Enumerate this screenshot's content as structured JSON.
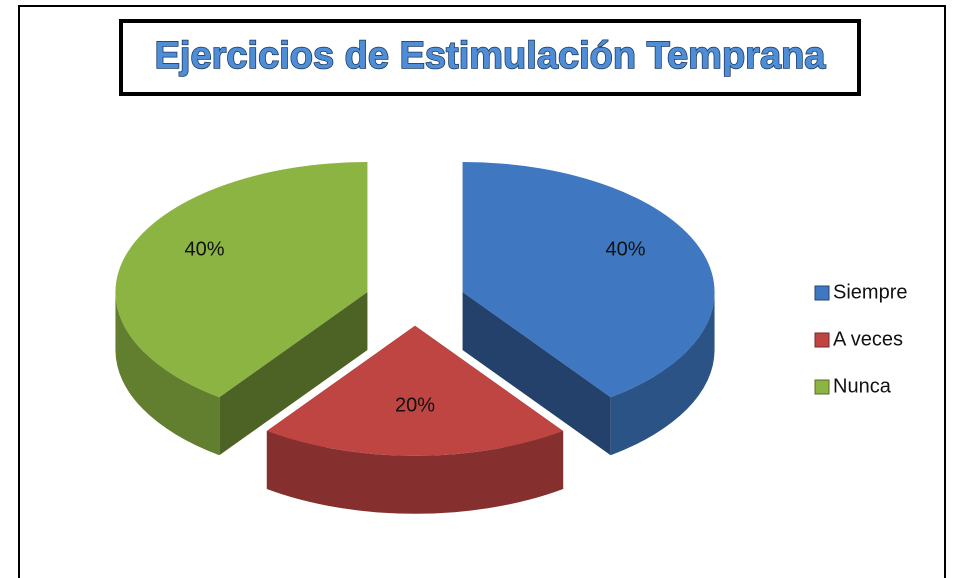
{
  "chart_data": {
    "type": "pie",
    "title": "Ejercicios de Estimulación Temprana",
    "categories": [
      "Siempre",
      "A veces",
      "Nunca"
    ],
    "values": [
      40,
      20,
      40
    ],
    "value_labels": [
      "40%",
      "20%",
      "40%"
    ],
    "colors": [
      "#3f77c0",
      "#be4542",
      "#8cb443"
    ],
    "legend": "right"
  }
}
